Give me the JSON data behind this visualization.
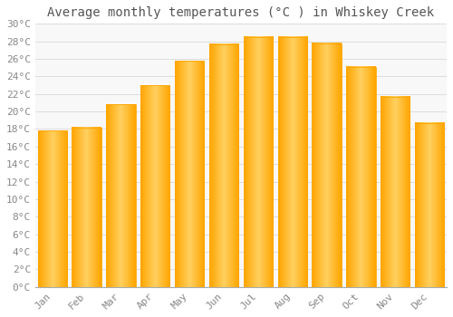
{
  "title": "Average monthly temperatures (°C ) in Whiskey Creek",
  "months": [
    "Jan",
    "Feb",
    "Mar",
    "Apr",
    "May",
    "Jun",
    "Jul",
    "Aug",
    "Sep",
    "Oct",
    "Nov",
    "Dec"
  ],
  "values": [
    17.8,
    18.2,
    20.8,
    23.0,
    25.8,
    27.7,
    28.5,
    28.5,
    27.8,
    25.1,
    21.7,
    18.7
  ],
  "bar_color_center": "#FFD060",
  "bar_color_edge": "#FFA500",
  "background_color": "#FFFFFF",
  "plot_bg_color": "#F8F8F8",
  "grid_color": "#DDDDDD",
  "title_color": "#555555",
  "tick_label_color": "#888888",
  "ylim": [
    0,
    30
  ],
  "ytick_step": 2,
  "title_fontsize": 10,
  "tick_fontsize": 8,
  "bar_width": 0.85
}
